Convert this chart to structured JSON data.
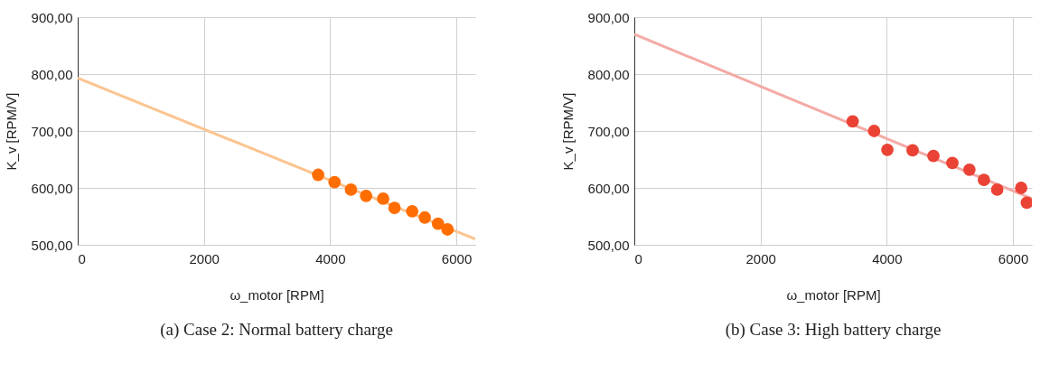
{
  "chart_data": [
    {
      "type": "scatter",
      "title": "(a) Case 2: Normal battery charge",
      "xlabel": "ω_motor [RPM]",
      "ylabel": "K_v [RPM/V]",
      "xlim": [
        0,
        6300
      ],
      "xticks": [
        0,
        2000,
        4000,
        6000
      ],
      "ylim": [
        500,
        900
      ],
      "yticks": [
        {
          "value": 500,
          "label": "500,00"
        },
        {
          "value": 600,
          "label": "600,00"
        },
        {
          "value": 700,
          "label": "700,00"
        },
        {
          "value": 800,
          "label": "800,00"
        },
        {
          "value": 900,
          "label": "900,00"
        }
      ],
      "grid": true,
      "series": [
        {
          "type": "line",
          "color": "#fcc490",
          "x": [
            0,
            6300
          ],
          "values": [
            793,
            510
          ]
        },
        {
          "marker": "circle",
          "color": "#ff6d01",
          "x": [
            3810,
            4070,
            4330,
            4570,
            4840,
            5020,
            5300,
            5500,
            5710,
            5860
          ],
          "values": [
            623,
            610,
            597,
            586,
            581,
            565,
            559,
            548,
            537,
            527
          ]
        }
      ]
    },
    {
      "type": "scatter",
      "title": "(b) Case 3: High battery charge",
      "xlabel": "ω_motor [RPM]",
      "ylabel": "K_v [RPM/V]",
      "xlim": [
        0,
        6300
      ],
      "xticks": [
        0,
        2000,
        4000,
        6000
      ],
      "ylim": [
        500,
        900
      ],
      "yticks": [
        {
          "value": 500,
          "label": "500,00"
        },
        {
          "value": 600,
          "label": "600,00"
        },
        {
          "value": 700,
          "label": "700,00"
        },
        {
          "value": 800,
          "label": "800,00"
        },
        {
          "value": 900,
          "label": "900,00"
        }
      ],
      "grid": true,
      "series": [
        {
          "type": "line",
          "color": "#f4aaa5",
          "x": [
            0,
            6300
          ],
          "values": [
            870,
            581
          ]
        },
        {
          "marker": "circle",
          "color": "#ea4335",
          "x": [
            3460,
            3800,
            4010,
            4410,
            4740,
            5040,
            5310,
            5540,
            5750,
            6130,
            6220
          ],
          "values": [
            717,
            700,
            667,
            666,
            656,
            644,
            632,
            614,
            597,
            600,
            574
          ]
        }
      ]
    }
  ]
}
